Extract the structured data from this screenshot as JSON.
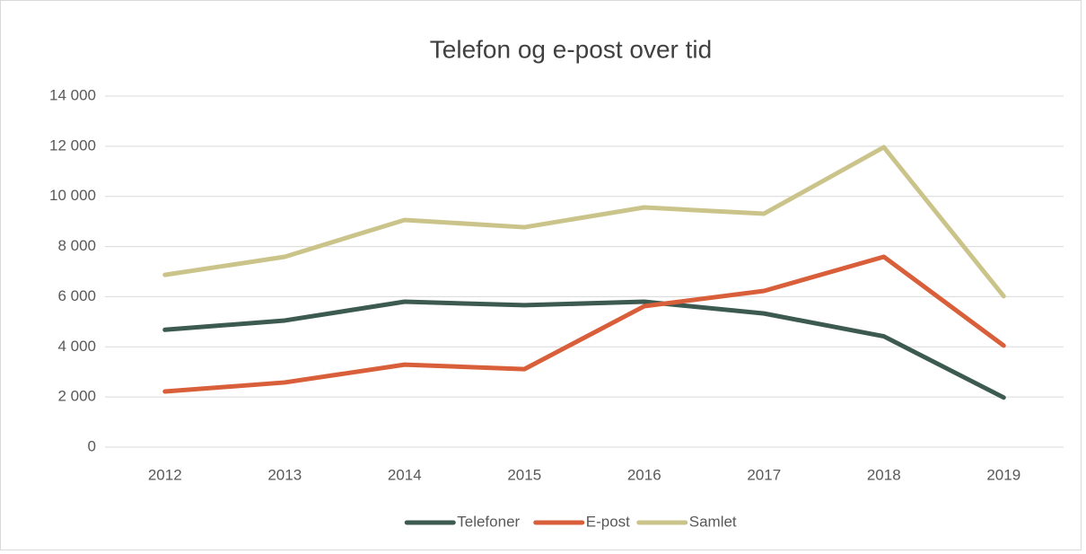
{
  "chart_data": {
    "type": "line",
    "title": "Telefon og e-post over tid",
    "categories": [
      "2012",
      "2013",
      "2014",
      "2015",
      "2016",
      "2017",
      "2018",
      "2019"
    ],
    "series": [
      {
        "name": "Telefoner",
        "color": "#3c5a50",
        "values": [
          4680,
          5050,
          5800,
          5660,
          5800,
          5330,
          4420,
          1980
        ]
      },
      {
        "name": "E-post",
        "color": "#d95f3a",
        "values": [
          2220,
          2580,
          3290,
          3110,
          5620,
          6230,
          7590,
          4050
        ]
      },
      {
        "name": "Samlet",
        "color": "#cbc48a",
        "values": [
          6870,
          7590,
          9060,
          8770,
          9560,
          9310,
          11960,
          6020
        ]
      }
    ],
    "ylim": [
      0,
      14000
    ],
    "yticks": [
      0,
      {
        "value": 2000,
        "label": "2 000"
      },
      {
        "value": 4000,
        "label": "4 000"
      },
      {
        "value": 6000,
        "label": "6 000"
      },
      {
        "value": 8000,
        "label": "8 000"
      },
      {
        "value": 10000,
        "label": "10 000"
      },
      {
        "value": 12000,
        "label": "12 000"
      },
      {
        "value": 14000,
        "label": "14 000"
      }
    ],
    "grid": true,
    "legend": "bottom"
  }
}
